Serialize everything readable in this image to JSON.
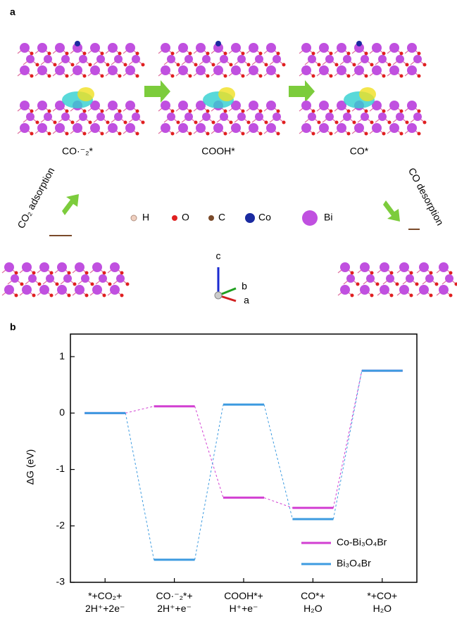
{
  "panel_a": {
    "label": "a",
    "states": [
      "CO·⁻₂*",
      "COOH*",
      "CO*"
    ],
    "steps": [
      "CO₂ adsorption",
      "CO desorption"
    ],
    "atoms": [
      "H",
      "O",
      "C",
      "Co",
      "Bi"
    ],
    "axes": [
      "c",
      "b",
      "a"
    ]
  },
  "chart_data": {
    "type": "energy-levels",
    "panel_label": "b",
    "y_label": "ΔG (eV)",
    "categories": [
      "*+CO₂+\n2H⁺+2e⁻",
      "CO·⁻₂*+\n2H⁺+e⁻",
      "COOH*+\nH⁺+e⁻",
      "CO*+\nH₂O",
      "*+CO+\nH₂O"
    ],
    "series": [
      {
        "name": "Co-Bi₃O₄Br",
        "color": "#d23fd2",
        "values": [
          0,
          0.12,
          -1.5,
          -1.68,
          0.75
        ]
      },
      {
        "name": "Bi₃O₄Br",
        "color": "#3d9be0",
        "values": [
          0,
          -2.6,
          0.15,
          -1.88,
          0.75
        ]
      }
    ],
    "ylim": [
      -3,
      1.4
    ],
    "yticks": [
      -3,
      -2,
      -1,
      0,
      1
    ],
    "legend": "lower right"
  }
}
